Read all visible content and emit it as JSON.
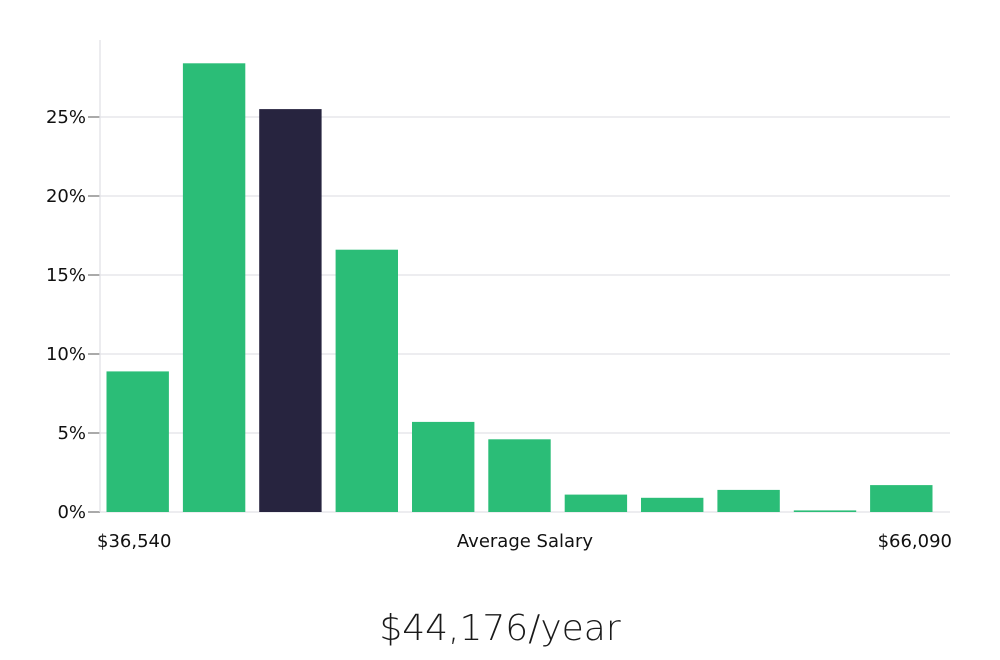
{
  "chart_data": {
    "type": "bar",
    "xlabel": "Average Salary",
    "x_range_labels": [
      "$36,540",
      "$66,090"
    ],
    "ylim": [
      0,
      30
    ],
    "yticks": [
      0,
      5,
      10,
      15,
      20,
      25
    ],
    "ytick_labels": [
      "0%",
      "5%",
      "10%",
      "15%",
      "20%",
      "25%"
    ],
    "grid": true,
    "values": [
      8.9,
      28.4,
      25.5,
      16.6,
      5.7,
      4.6,
      1.1,
      0.9,
      1.4,
      0.1,
      1.7
    ],
    "highlight_index": 2,
    "colors": {
      "bar": "#2bbd77",
      "highlight": "#27243f",
      "grid": "#e2e2e6",
      "axis": "#e2e2e6"
    }
  },
  "summary": {
    "salary_text": "$44,176/year"
  }
}
